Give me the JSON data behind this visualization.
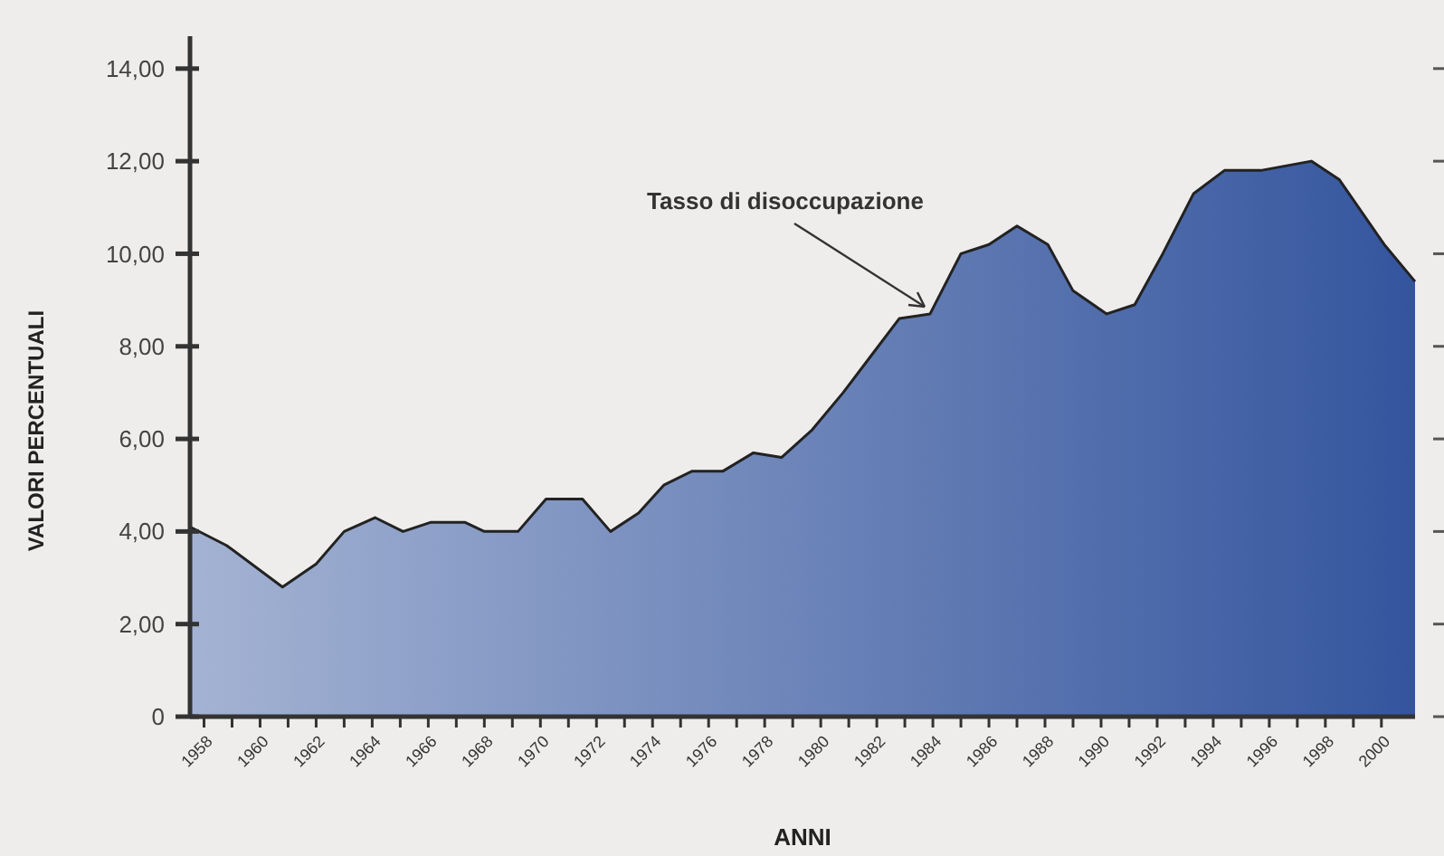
{
  "chart_data": {
    "type": "area",
    "xlabel": "ANNI",
    "ylabel": "VALORI PERCENTUALI",
    "annotations": [
      {
        "text": "Tasso di disoccupazione",
        "x": 1983.9,
        "y": 8.7
      }
    ],
    "x": [
      1957.5,
      1958.8,
      1960.8,
      1962.0,
      1963.0,
      1964.1,
      1965.1,
      1966.1,
      1967.3,
      1968.0,
      1969.2,
      1970.2,
      1971.5,
      1972.5,
      1973.5,
      1974.4,
      1975.4,
      1976.5,
      1977.6,
      1978.6,
      1979.7,
      1980.8,
      1981.8,
      1982.8,
      1983.9,
      1985.0,
      1986.0,
      1987.0,
      1988.1,
      1989.0,
      1990.2,
      1991.2,
      1992.2,
      1993.3,
      1994.4,
      1995.7,
      1997.5,
      1998.5,
      2000.1,
      2001.2
    ],
    "series": [
      {
        "color": "#34559e",
        "values": [
          4.1,
          3.7,
          2.8,
          3.3,
          4.0,
          4.3,
          4.0,
          4.2,
          4.2,
          4.0,
          4.0,
          4.7,
          4.7,
          4.0,
          4.4,
          5.0,
          5.3,
          5.3,
          5.7,
          5.6,
          6.2,
          7.0,
          7.8,
          8.6,
          8.7,
          10.0,
          10.2,
          10.6,
          10.2,
          9.2,
          8.7,
          8.9,
          10.0,
          11.3,
          11.8,
          11.8,
          12.0,
          11.6,
          10.2,
          9.4
        ]
      }
    ],
    "xlim": [
      1957.5,
      2001.2
    ],
    "xticks": [
      {
        "value": 1958,
        "label": "1958"
      },
      {
        "value": 1959,
        "label": null
      },
      {
        "value": 1960,
        "label": "1960"
      },
      {
        "value": 1961,
        "label": null
      },
      {
        "value": 1962,
        "label": "1962"
      },
      {
        "value": 1963,
        "label": null
      },
      {
        "value": 1964,
        "label": "1964"
      },
      {
        "value": 1965,
        "label": null
      },
      {
        "value": 1966,
        "label": "1966"
      },
      {
        "value": 1967,
        "label": null
      },
      {
        "value": 1968,
        "label": "1968"
      },
      {
        "value": 1969,
        "label": null
      },
      {
        "value": 1970,
        "label": "1970"
      },
      {
        "value": 1971,
        "label": null
      },
      {
        "value": 1972,
        "label": "1972"
      },
      {
        "value": 1973,
        "label": null
      },
      {
        "value": 1974,
        "label": "1974"
      },
      {
        "value": 1975,
        "label": null
      },
      {
        "value": 1976,
        "label": "1976"
      },
      {
        "value": 1977,
        "label": null
      },
      {
        "value": 1978,
        "label": "1978"
      },
      {
        "value": 1979,
        "label": null
      },
      {
        "value": 1980,
        "label": "1980"
      },
      {
        "value": 1981,
        "label": null
      },
      {
        "value": 1982,
        "label": "1982"
      },
      {
        "value": 1983,
        "label": null
      },
      {
        "value": 1984,
        "label": "1984"
      },
      {
        "value": 1985,
        "label": null
      },
      {
        "value": 1986,
        "label": "1986"
      },
      {
        "value": 1987,
        "label": null
      },
      {
        "value": 1988,
        "label": "1988"
      },
      {
        "value": 1989,
        "label": null
      },
      {
        "value": 1990,
        "label": "1990"
      },
      {
        "value": 1991,
        "label": null
      },
      {
        "value": 1992,
        "label": "1992"
      },
      {
        "value": 1993,
        "label": null
      },
      {
        "value": 1994,
        "label": "1994"
      },
      {
        "value": 1995,
        "label": null
      },
      {
        "value": 1996,
        "label": "1996"
      },
      {
        "value": 1997,
        "label": null
      },
      {
        "value": 1998,
        "label": "1998"
      },
      {
        "value": 1999,
        "label": null
      },
      {
        "value": 2000,
        "label": "2000"
      }
    ],
    "ylim": [
      0,
      14.7
    ],
    "yticks": [
      {
        "value": 0,
        "label": "0"
      },
      {
        "value": 2,
        "label": "2,00"
      },
      {
        "value": 4,
        "label": "4,00"
      },
      {
        "value": 6,
        "label": "6,00"
      },
      {
        "value": 8,
        "label": "8,00"
      },
      {
        "value": 10,
        "label": "10,00"
      },
      {
        "value": 12,
        "label": "12,00"
      },
      {
        "value": 14,
        "label": "14,00"
      }
    ],
    "grid": false
  }
}
